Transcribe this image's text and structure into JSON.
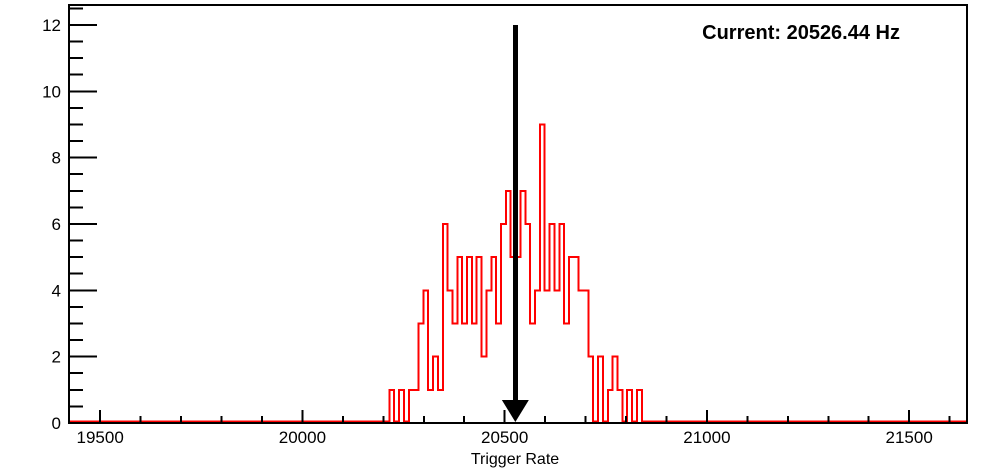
{
  "header": {
    "title": "Current: 20526.44 Hz"
  },
  "chart_data": {
    "type": "bar",
    "subtype": "step-histogram",
    "title": "Current: 20526.44 Hz",
    "xlabel": "Trigger Rate",
    "ylabel": "",
    "x_range": [
      19423,
      21643
    ],
    "y_range": [
      0,
      12.6
    ],
    "x_major_ticks": [
      19500,
      20000,
      20500,
      21000,
      21500
    ],
    "x_major_tick_labels": [
      "19500",
      "20000",
      "20500",
      "21000",
      "21500"
    ],
    "x_minor_step": 100,
    "y_major_ticks": [
      0,
      2,
      4,
      6,
      8,
      10,
      12
    ],
    "y_major_tick_labels": [
      "0",
      "2",
      "4",
      "6",
      "8",
      "10",
      "12"
    ],
    "y_minor_step": 0.5,
    "grid": false,
    "legend": null,
    "hist": {
      "bin_start": 20215,
      "bin_width": 12,
      "counts": [
        1,
        0,
        1,
        0,
        1,
        1,
        3,
        4,
        1,
        2,
        1,
        6,
        4,
        3,
        5,
        3,
        5,
        3,
        5,
        2,
        4,
        5,
        3,
        6,
        7,
        5,
        5,
        7,
        6,
        3,
        4,
        9,
        4,
        6,
        4,
        6,
        3,
        5,
        5,
        4,
        4,
        2,
        0,
        2,
        0,
        1,
        2,
        1,
        0,
        1,
        0,
        1
      ]
    },
    "marker_arrow": {
      "x": 20526.44,
      "from_y": 12.0,
      "to_y": 0.0
    },
    "colors": {
      "histogram": "#ff0000",
      "arrow": "#000000",
      "axis": "#000000",
      "background": "#ffffff"
    }
  }
}
